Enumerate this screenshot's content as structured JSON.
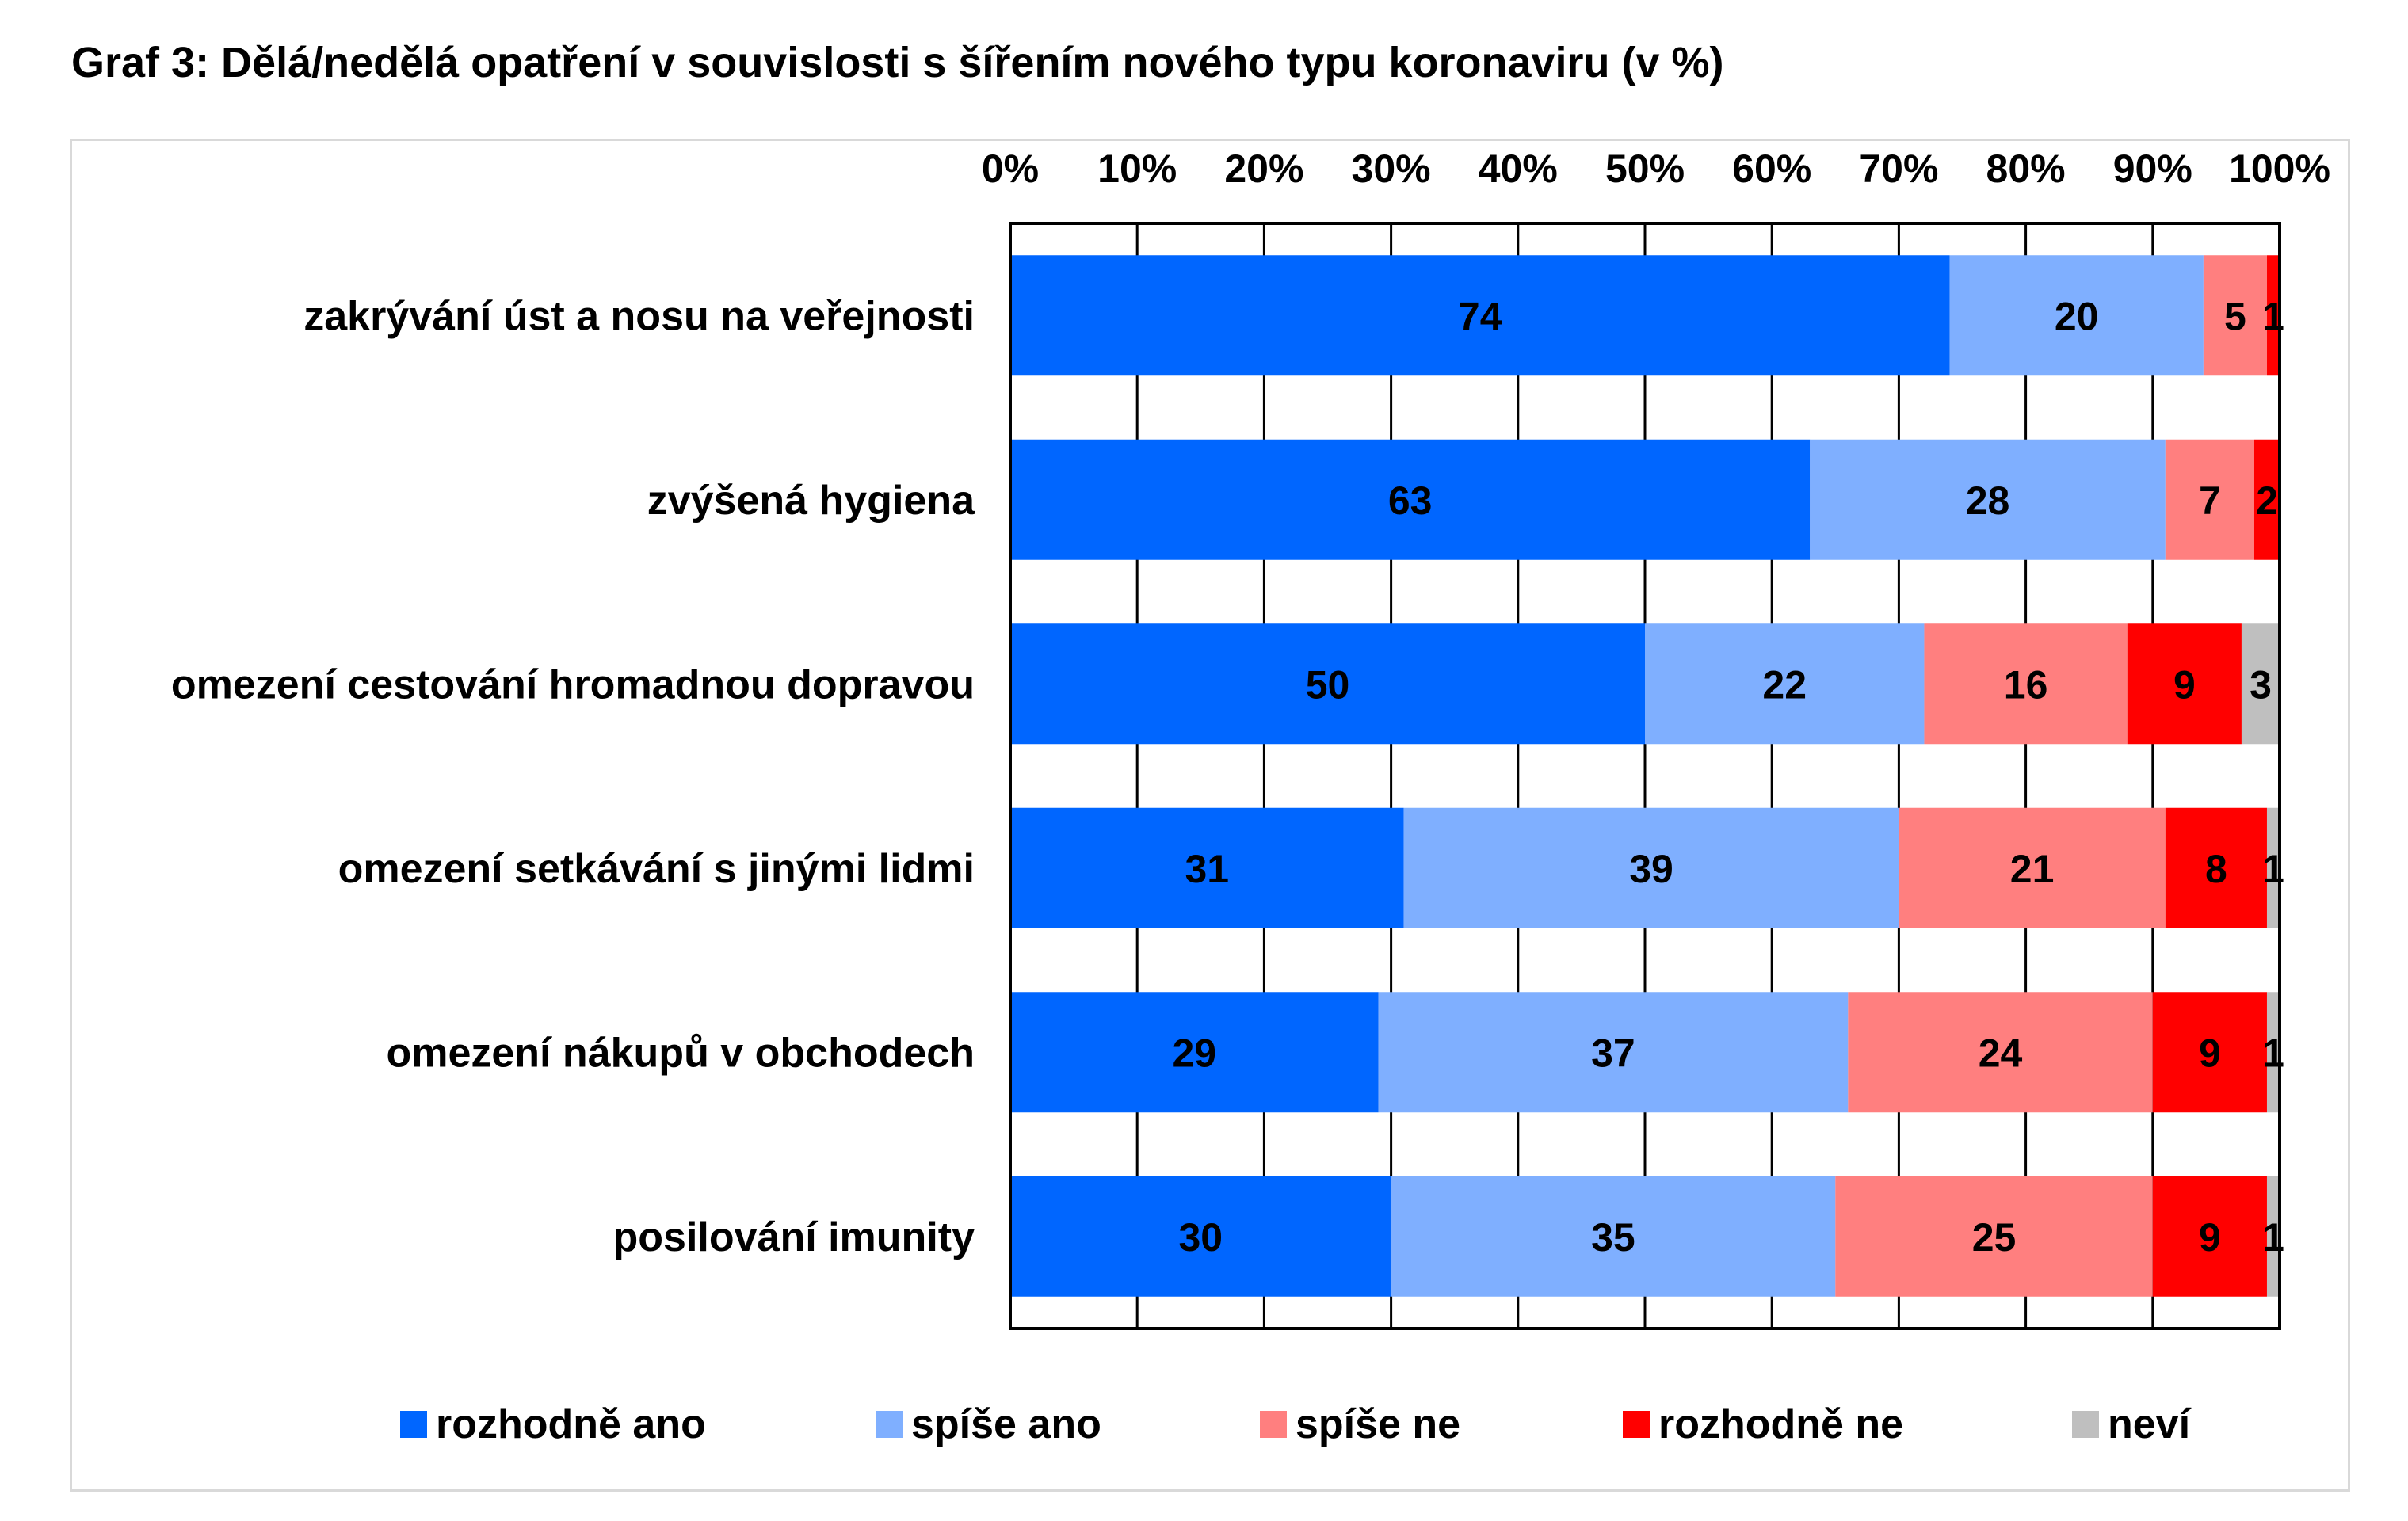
{
  "chart_data": {
    "type": "bar",
    "orientation": "horizontal",
    "stacked": "percent",
    "title": "Graf 3: Dělá/nedělá opatření v souvislosti s šířením nového typu koronaviru (v %)",
    "categories": [
      "zakrývání úst a nosu na veřejnosti",
      "zvýšená hygiena",
      "omezení cestování hromadnou dopravou",
      "omezení setkávání s jinými lidmi",
      "omezení nákupů v obchodech",
      "posilování imunity"
    ],
    "series": [
      {
        "name": "rozhodně ano",
        "color": "#0066FF",
        "values": [
          74,
          63,
          50,
          31,
          29,
          30
        ]
      },
      {
        "name": "spíše ano",
        "color": "#7FAFFF",
        "values": [
          20,
          28,
          22,
          39,
          37,
          35
        ]
      },
      {
        "name": "spíše ne",
        "color": "#FF7F7F",
        "values": [
          5,
          7,
          16,
          21,
          24,
          25
        ]
      },
      {
        "name": "rozhodně ne",
        "color": "#FF0000",
        "values": [
          1,
          2,
          9,
          8,
          9,
          9
        ]
      },
      {
        "name": "neví",
        "color": "#BFBFBF",
        "values": [
          0,
          0,
          3,
          1,
          1,
          1
        ]
      }
    ],
    "xlim": [
      0,
      100
    ],
    "xticks": [
      "0%",
      "10%",
      "20%",
      "30%",
      "40%",
      "50%",
      "60%",
      "70%",
      "80%",
      "90%",
      "100%"
    ],
    "x_axis_position": "top",
    "grid": "vertical",
    "legend": "bottom"
  }
}
